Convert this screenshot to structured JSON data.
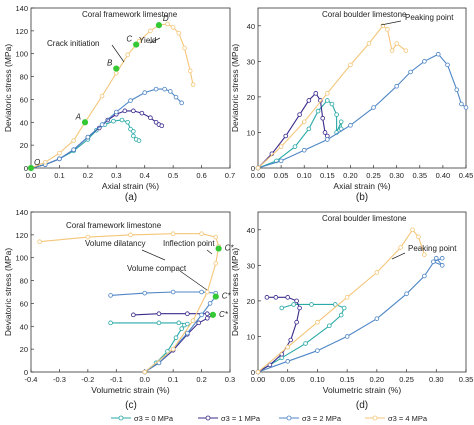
{
  "figure": {
    "legend": {
      "entries": [
        "σ3 = 0 MPa",
        "σ3 = 1 MPa",
        "σ3 = 2 MPa",
        "σ3 = 4 MPa"
      ]
    }
  },
  "colors": {
    "s0": "#29a9a7",
    "s1": "#3b2a8c",
    "s2": "#4f86c6",
    "s4": "#f4c67a",
    "green": "#34c934"
  },
  "chart_data": [
    {
      "type": "line",
      "panel_label": "(a)",
      "title": "Coral framework limestone",
      "xlabel": "Axial strain (%)",
      "ylabel": "Deviatoric stress (MPa)",
      "xlim": [
        0,
        0.7
      ],
      "ylim": [
        0,
        140
      ],
      "xticks": [
        "0.0",
        "0.1",
        "0.2",
        "0.3",
        "0.4",
        "0.5",
        "0.6",
        "0.7"
      ],
      "yticks": [
        "0",
        "20",
        "40",
        "60",
        "80",
        "100",
        "120",
        "140"
      ],
      "series": [
        {
          "name": "σ3 = 0 MPa",
          "x": [
            0,
            0.05,
            0.1,
            0.15,
            0.2,
            0.23,
            0.26,
            0.29,
            0.32,
            0.34,
            0.35,
            0.36,
            0.36,
            0.37,
            0.38
          ],
          "y": [
            0,
            3,
            8,
            15,
            25,
            33,
            38,
            41,
            42,
            40,
            34,
            32,
            28,
            25,
            24
          ]
        },
        {
          "name": "σ3 = 1 MPa",
          "x": [
            0,
            0.05,
            0.1,
            0.15,
            0.2,
            0.24,
            0.27,
            0.3,
            0.33,
            0.36,
            0.39,
            0.42,
            0.44,
            0.45,
            0.46
          ],
          "y": [
            0,
            3,
            8,
            16,
            27,
            35,
            42,
            47,
            50,
            50,
            48,
            44,
            40,
            38,
            37
          ]
        },
        {
          "name": "σ3 = 2 MPa",
          "x": [
            0,
            0.05,
            0.1,
            0.15,
            0.2,
            0.25,
            0.3,
            0.35,
            0.4,
            0.44,
            0.47,
            0.49,
            0.51,
            0.53
          ],
          "y": [
            0,
            3,
            8,
            16,
            27,
            38,
            49,
            59,
            66,
            69,
            69,
            67,
            62,
            57
          ]
        },
        {
          "name": "σ3 = 4 MPa",
          "x": [
            0,
            0.05,
            0.1,
            0.15,
            0.19,
            0.25,
            0.3,
            0.34,
            0.38,
            0.42,
            0.45,
            0.48,
            0.5,
            0.52,
            0.54,
            0.56,
            0.57
          ],
          "y": [
            0,
            5,
            13,
            24,
            40,
            63,
            83,
            99,
            111,
            120,
            125,
            126,
            123,
            118,
            105,
            85,
            73
          ]
        }
      ],
      "markers": [
        {
          "label": "O",
          "x": 0,
          "y": 0
        },
        {
          "label": "A",
          "x": 0.19,
          "y": 40
        },
        {
          "label": "B",
          "x": 0.3,
          "y": 87
        },
        {
          "label": "C",
          "x": 0.37,
          "y": 108
        },
        {
          "label": "D",
          "x": 0.45,
          "y": 125
        }
      ],
      "annotations": [
        "Crack initiation",
        "Yield"
      ]
    },
    {
      "type": "line",
      "panel_label": "(b)",
      "title": "Coral boulder limestone",
      "xlabel": "Axial strain (%)",
      "ylabel": "Deviatoric stress (MPa)",
      "xlim": [
        0,
        0.45
      ],
      "ylim": [
        0,
        45
      ],
      "xticks": [
        "0.00",
        "0.05",
        "0.10",
        "0.15",
        "0.20",
        "0.25",
        "0.30",
        "0.35",
        "0.40",
        "0.45"
      ],
      "yticks": [
        "0",
        "10",
        "20",
        "30",
        "40"
      ],
      "series": [
        {
          "name": "σ3 = 0 MPa",
          "x": [
            0,
            0.04,
            0.08,
            0.11,
            0.13,
            0.15,
            0.16,
            0.17,
            0.17,
            0.18,
            0.18
          ],
          "y": [
            0,
            2,
            6,
            11,
            16,
            19,
            18,
            15,
            10,
            13,
            11
          ]
        },
        {
          "name": "σ3 = 1 MPa",
          "x": [
            0,
            0.03,
            0.06,
            0.09,
            0.11,
            0.125,
            0.135,
            0.14,
            0.145,
            0.15
          ],
          "y": [
            0,
            4,
            9,
            15,
            19,
            21,
            19,
            14,
            10,
            9
          ]
        },
        {
          "name": "σ3 = 2 MPa",
          "x": [
            0,
            0.05,
            0.1,
            0.15,
            0.2,
            0.25,
            0.3,
            0.33,
            0.36,
            0.39,
            0.41,
            0.43,
            0.44,
            0.45
          ],
          "y": [
            0,
            2,
            5,
            8,
            12,
            17,
            23,
            27,
            30,
            32,
            29,
            22,
            18,
            17
          ]
        },
        {
          "name": "σ3 = 4 MPa",
          "x": [
            0,
            0.05,
            0.1,
            0.15,
            0.2,
            0.24,
            0.27,
            0.28,
            0.29,
            0.3,
            0.32
          ],
          "y": [
            0,
            6,
            13,
            21,
            29,
            35,
            40,
            39,
            33,
            35,
            33
          ]
        }
      ],
      "annotations": [
        "Peaking point"
      ]
    },
    {
      "type": "line",
      "panel_label": "(c)",
      "title": "Coral framework limestone",
      "xlabel": "Volumetric strain (%)",
      "ylabel": "Deviatoric stress (MPa)",
      "xlim": [
        -0.4,
        0.3
      ],
      "ylim": [
        0,
        140
      ],
      "xticks": [
        "-0.4",
        "-0.3",
        "-0.2",
        "-0.1",
        "0.0",
        "0.1",
        "0.2",
        "0.3"
      ],
      "yticks": [
        "0",
        "20",
        "40",
        "60",
        "80",
        "100",
        "120",
        "140"
      ],
      "series": [
        {
          "name": "σ3 = 0 MPa",
          "x": [
            0,
            0.04,
            0.08,
            0.11,
            0.13,
            0.14,
            0.15,
            0.12,
            0.05,
            -0.12
          ],
          "y": [
            0,
            8,
            18,
            30,
            38,
            41,
            42,
            43,
            43,
            43
          ]
        },
        {
          "name": "σ3 = 1 MPa",
          "x": [
            0,
            0.05,
            0.1,
            0.15,
            0.19,
            0.22,
            0.24,
            0.22,
            0.15,
            0.05,
            -0.04
          ],
          "y": [
            0,
            8,
            19,
            33,
            43,
            47,
            50,
            51,
            51,
            51,
            50
          ]
        },
        {
          "name": "σ3 = 2 MPa",
          "x": [
            0,
            0.05,
            0.1,
            0.15,
            0.2,
            0.23,
            0.25,
            0.25,
            0.2,
            0.1,
            0.0,
            -0.12
          ],
          "y": [
            0,
            8,
            20,
            34,
            50,
            60,
            66,
            69,
            70,
            70,
            69,
            67
          ]
        },
        {
          "name": "σ3 = 4 MPa",
          "x": [
            0,
            0.1,
            0.17,
            0.22,
            0.25,
            0.26,
            0.25,
            0.2,
            0.1,
            -0.05,
            -0.2,
            -0.37
          ],
          "y": [
            0,
            20,
            45,
            70,
            95,
            110,
            118,
            121,
            121,
            120,
            118,
            114
          ]
        }
      ],
      "markers": [
        {
          "label": "C*",
          "x": 0.26,
          "y": 108
        },
        {
          "label": "C*",
          "x": 0.25,
          "y": 66
        },
        {
          "label": "C*",
          "x": 0.24,
          "y": 50
        }
      ],
      "annotations": [
        "Volume dilatancy",
        "Inflection point",
        "Volume compact"
      ]
    },
    {
      "type": "line",
      "panel_label": "(d)",
      "title": "Coral boulder limestone",
      "xlabel": "Volumetric strain (%)",
      "ylabel": "Deviatoric stress (MPa)",
      "xlim": [
        0,
        0.35
      ],
      "ylim": [
        0,
        45
      ],
      "xticks": [
        "0.00",
        "0.05",
        "0.10",
        "0.15",
        "0.20",
        "0.25",
        "0.30",
        "0.35"
      ],
      "yticks": [
        "0",
        "10",
        "20",
        "30",
        "40"
      ],
      "series": [
        {
          "name": "σ3 = 0 MPa",
          "x": [
            0,
            0.04,
            0.08,
            0.12,
            0.14,
            0.145,
            0.13,
            0.09,
            0.06,
            0.04
          ],
          "y": [
            0,
            4,
            8,
            13,
            16,
            18,
            19,
            19,
            19,
            18
          ]
        },
        {
          "name": "σ3 = 1 MPa",
          "x": [
            0,
            0.02,
            0.04,
            0.055,
            0.065,
            0.07,
            0.065,
            0.05,
            0.03,
            0.015
          ],
          "y": [
            0,
            2,
            5,
            9,
            14,
            18,
            20,
            21,
            21,
            21
          ]
        },
        {
          "name": "σ3 = 2 MPa",
          "x": [
            0,
            0.05,
            0.1,
            0.15,
            0.2,
            0.25,
            0.28,
            0.3,
            0.31,
            0.295,
            0.31
          ],
          "y": [
            0,
            3,
            6,
            10,
            15,
            22,
            27,
            32,
            30,
            31,
            32
          ]
        },
        {
          "name": "σ3 = 4 MPa",
          "x": [
            0,
            0.05,
            0.1,
            0.15,
            0.2,
            0.24,
            0.26,
            0.27,
            0.28
          ],
          "y": [
            0,
            7,
            14,
            21,
            28,
            35,
            40,
            38,
            33
          ]
        }
      ],
      "annotations": [
        "Peaking point"
      ]
    }
  ]
}
